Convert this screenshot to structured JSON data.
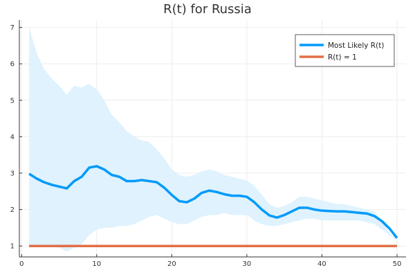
{
  "chart_data": {
    "type": "line",
    "title": "R(t) for Russia",
    "xlabel": "",
    "ylabel": "",
    "xlim": [
      1,
      50
    ],
    "ylim": [
      0.7,
      7.2
    ],
    "xticks": [
      0,
      10,
      20,
      30,
      40,
      50
    ],
    "yticks": [
      1,
      2,
      3,
      4,
      5,
      6,
      7
    ],
    "grid": true,
    "legend_position": "top-right",
    "x": [
      1,
      2,
      3,
      4,
      5,
      6,
      7,
      8,
      9,
      10,
      11,
      12,
      13,
      14,
      15,
      16,
      17,
      18,
      19,
      20,
      21,
      22,
      23,
      24,
      25,
      26,
      27,
      28,
      29,
      30,
      31,
      32,
      33,
      34,
      35,
      36,
      37,
      38,
      39,
      40,
      41,
      42,
      43,
      44,
      45,
      46,
      47,
      48,
      49,
      50
    ],
    "band": {
      "upper": [
        7.0,
        6.3,
        5.85,
        5.6,
        5.4,
        5.15,
        5.4,
        5.35,
        5.45,
        5.3,
        5.0,
        4.6,
        4.4,
        4.15,
        4.0,
        3.9,
        3.85,
        3.65,
        3.4,
        3.1,
        2.95,
        2.9,
        2.95,
        3.05,
        3.1,
        3.05,
        2.95,
        2.9,
        2.85,
        2.8,
        2.65,
        2.4,
        2.15,
        2.05,
        2.1,
        2.2,
        2.35,
        2.35,
        2.3,
        2.25,
        2.2,
        2.15,
        2.15,
        2.1,
        2.05,
        2.0,
        1.95,
        1.7,
        1.35,
        1.2
      ],
      "lower": [
        1.0,
        1.0,
        1.0,
        1.0,
        0.95,
        0.85,
        0.95,
        1.05,
        1.3,
        1.45,
        1.5,
        1.5,
        1.55,
        1.55,
        1.6,
        1.7,
        1.8,
        1.85,
        1.75,
        1.65,
        1.6,
        1.6,
        1.7,
        1.8,
        1.85,
        1.85,
        1.9,
        1.85,
        1.85,
        1.85,
        1.7,
        1.6,
        1.55,
        1.55,
        1.6,
        1.65,
        1.7,
        1.75,
        1.75,
        1.7,
        1.7,
        1.7,
        1.7,
        1.7,
        1.7,
        1.65,
        1.6,
        1.45,
        1.3,
        1.15
      ]
    },
    "series": [
      {
        "name": "Most Likely R(t)",
        "color": "#009AFA",
        "values": [
          2.98,
          2.85,
          2.75,
          2.68,
          2.63,
          2.58,
          2.78,
          2.9,
          3.15,
          3.19,
          3.1,
          2.95,
          2.9,
          2.78,
          2.78,
          2.81,
          2.78,
          2.75,
          2.6,
          2.4,
          2.23,
          2.2,
          2.3,
          2.46,
          2.52,
          2.48,
          2.42,
          2.38,
          2.38,
          2.35,
          2.2,
          2.0,
          1.84,
          1.78,
          1.85,
          1.95,
          2.05,
          2.05,
          2.0,
          1.97,
          1.96,
          1.95,
          1.95,
          1.93,
          1.91,
          1.89,
          1.82,
          1.68,
          1.48,
          1.22
        ]
      },
      {
        "name": "R(t) = 1",
        "color": "#E26F46",
        "values": [
          1,
          1,
          1,
          1,
          1,
          1,
          1,
          1,
          1,
          1,
          1,
          1,
          1,
          1,
          1,
          1,
          1,
          1,
          1,
          1,
          1,
          1,
          1,
          1,
          1,
          1,
          1,
          1,
          1,
          1,
          1,
          1,
          1,
          1,
          1,
          1,
          1,
          1,
          1,
          1,
          1,
          1,
          1,
          1,
          1,
          1,
          1,
          1,
          1,
          1
        ]
      }
    ],
    "band_color": "#DFF2FE"
  }
}
